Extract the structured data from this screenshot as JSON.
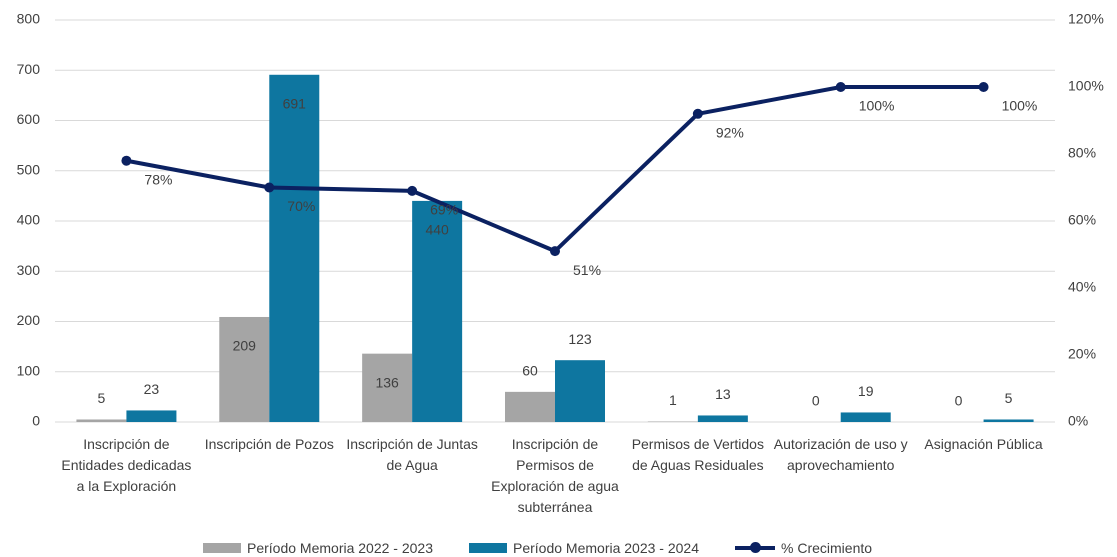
{
  "chart_data": {
    "type": "bar_line",
    "categories": [
      "Inscripción de Entidades dedicadas a la Exploración",
      "Inscripción de Pozos",
      "Inscripción de Juntas de Agua",
      "Inscripción de Permisos de Exploración de agua subterránea",
      "Permisos de Vertidos de Aguas Residuales",
      "Autorización de uso y aprovechamiento",
      "Asignación Pública"
    ],
    "series": [
      {
        "name": "Período Memoria 2022 - 2023",
        "type": "bar",
        "color": "#a5a5a5",
        "values": [
          5,
          209,
          136,
          60,
          1,
          0,
          0
        ]
      },
      {
        "name": "Período Memoria 2023 - 2024",
        "type": "bar",
        "color": "#0e76a0",
        "values": [
          23,
          691,
          440,
          123,
          13,
          19,
          5
        ]
      },
      {
        "name": "% Crecimiento",
        "type": "line",
        "axis": "y2",
        "color": "#0b2161",
        "values": [
          78,
          70,
          69,
          51,
          92,
          100,
          100
        ],
        "value_labels": [
          "78%",
          "70%",
          "69%",
          "51%",
          "92%",
          "100%",
          "100%"
        ]
      }
    ],
    "ylim": [
      0,
      800
    ],
    "yticks": [
      0,
      100,
      200,
      300,
      400,
      500,
      600,
      700,
      800
    ],
    "y2lim": [
      0,
      120
    ],
    "y2ticks": [
      {
        "value": 0,
        "label": "0%"
      },
      {
        "value": 20,
        "label": "20%"
      },
      {
        "value": 40,
        "label": "40%"
      },
      {
        "value": 60,
        "label": "60%"
      },
      {
        "value": 80,
        "label": "80%"
      },
      {
        "value": 100,
        "label": "100%"
      },
      {
        "value": 120,
        "label": "120%"
      }
    ],
    "grid": true,
    "legend": "bottom"
  }
}
